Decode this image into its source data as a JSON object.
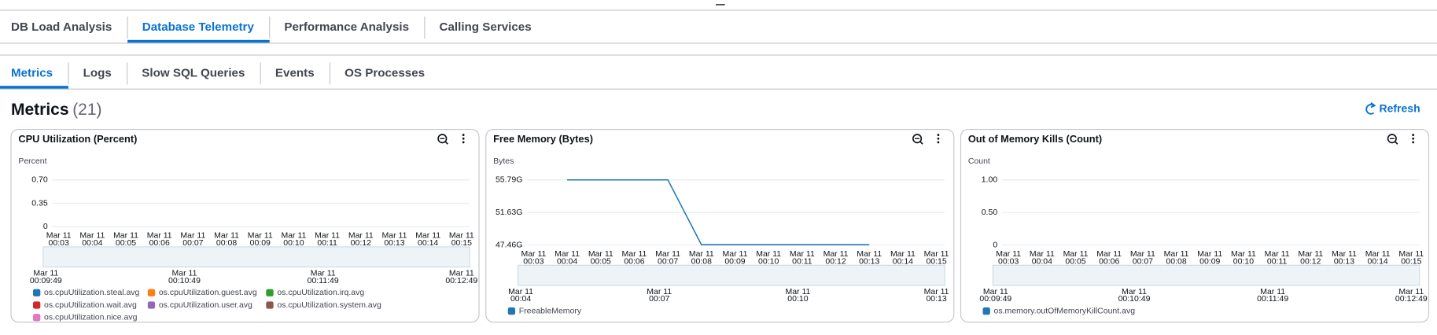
{
  "top_tabs": {
    "items": [
      "DB Load Analysis",
      "Database Telemetry",
      "Performance Analysis",
      "Calling Services"
    ],
    "selected": 1
  },
  "sub_tabs": {
    "items": [
      "Metrics",
      "Logs",
      "Slow SQL Queries",
      "Events",
      "OS Processes"
    ],
    "selected": 0
  },
  "section": {
    "title": "Metrics",
    "count": "(21)",
    "action": "Refresh"
  },
  "chart_data": [
    {
      "type": "line",
      "title": "CPU Utilization (Percent)",
      "y_label": "Percent",
      "categories": [
        [
          "Mar 11",
          "00:03"
        ],
        [
          "Mar 11",
          "00:04"
        ],
        [
          "Mar 11",
          "00:05"
        ],
        [
          "Mar 11",
          "00:06"
        ],
        [
          "Mar 11",
          "00:07"
        ],
        [
          "Mar 11",
          "00:08"
        ],
        [
          "Mar 11",
          "00:09"
        ],
        [
          "Mar 11",
          "00:10"
        ],
        [
          "Mar 11",
          "00:11"
        ],
        [
          "Mar 11",
          "00:12"
        ],
        [
          "Mar 11",
          "00:13"
        ],
        [
          "Mar 11",
          "00:14"
        ],
        [
          "Mar 11",
          "00:15"
        ]
      ],
      "series": [
        {
          "name": "os.cpuUtilization.steal.avg",
          "color": "#1f77b4"
        },
        {
          "name": "os.cpuUtilization.guest.avg",
          "color": "#ff7f0e"
        },
        {
          "name": "os.cpuUtilization.irq.avg",
          "color": "#2ca02c"
        },
        {
          "name": "os.cpuUtilization.wait.avg",
          "color": "#d62728"
        },
        {
          "name": "os.cpuUtilization.user.avg",
          "color": "#9467bd"
        },
        {
          "name": "os.cpuUtilization.system.avg",
          "color": "#8c564b"
        },
        {
          "name": "os.cpuUtilization.nice.avg",
          "color": "#e377c2"
        }
      ],
      "ylim": [
        0,
        0.7
      ],
      "yticks": [
        0,
        {
          "value": 0.35,
          "label": "0.35"
        },
        {
          "value": 0.7,
          "label": "0.70"
        }
      ],
      "grid": true,
      "navigator_ticks": [
        [
          "Mar 11",
          "00:09:49"
        ],
        [
          "Mar 11",
          "00:10:49"
        ],
        [
          "Mar 11",
          "00:11:49"
        ],
        [
          "Mar 11",
          "00:12:49"
        ]
      ]
    },
    {
      "type": "line",
      "title": "Free Memory (Bytes)",
      "y_label": "Bytes",
      "categories": [
        [
          "Mar 11",
          "00:03"
        ],
        [
          "Mar 11",
          "00:04"
        ],
        [
          "Mar 11",
          "00:05"
        ],
        [
          "Mar 11",
          "00:06"
        ],
        [
          "Mar 11",
          "00:07"
        ],
        [
          "Mar 11",
          "00:08"
        ],
        [
          "Mar 11",
          "00:09"
        ],
        [
          "Mar 11",
          "00:10"
        ],
        [
          "Mar 11",
          "00:11"
        ],
        [
          "Mar 11",
          "00:12"
        ],
        [
          "Mar 11",
          "00:13"
        ],
        [
          "Mar 11",
          "00:14"
        ],
        [
          "Mar 11",
          "00:15"
        ]
      ],
      "series": [
        {
          "name": "FreeableMemory",
          "color": "#1f77b4",
          "values": [
            null,
            55.79,
            55.79,
            55.79,
            55.79,
            47.5,
            47.5,
            47.5,
            47.5,
            47.5,
            47.5,
            null,
            null
          ]
        }
      ],
      "ylim": [
        47.46,
        55.79
      ],
      "yticks": [
        {
          "value": 47.46,
          "label": "47.46G"
        },
        {
          "value": 51.63,
          "label": "51.63G"
        },
        {
          "value": 55.79,
          "label": "55.79G"
        }
      ],
      "grid": true,
      "navigator_ticks": [
        [
          "Mar 11",
          "00:04"
        ],
        [
          "Mar 11",
          "00:07"
        ],
        [
          "Mar 11",
          "00:10"
        ],
        [
          "Mar 11",
          "00:13"
        ]
      ]
    },
    {
      "type": "line",
      "title": "Out of Memory Kills (Count)",
      "y_label": "Count",
      "categories": [
        [
          "Mar 11",
          "00:03"
        ],
        [
          "Mar 11",
          "00:04"
        ],
        [
          "Mar 11",
          "00:05"
        ],
        [
          "Mar 11",
          "00:06"
        ],
        [
          "Mar 11",
          "00:07"
        ],
        [
          "Mar 11",
          "00:08"
        ],
        [
          "Mar 11",
          "00:09"
        ],
        [
          "Mar 11",
          "00:10"
        ],
        [
          "Mar 11",
          "00:11"
        ],
        [
          "Mar 11",
          "00:12"
        ],
        [
          "Mar 11",
          "00:13"
        ],
        [
          "Mar 11",
          "00:14"
        ],
        [
          "Mar 11",
          "00:15"
        ]
      ],
      "series": [
        {
          "name": "os.memory.outOfMemoryKillCount.avg",
          "color": "#1f77b4"
        }
      ],
      "ylim": [
        0,
        1
      ],
      "yticks": [
        0,
        {
          "value": 0.5,
          "label": "0.50"
        },
        {
          "value": 1,
          "label": "1.00"
        }
      ],
      "grid": true,
      "navigator_ticks": [
        [
          "Mar 11",
          "00:09:49"
        ],
        [
          "Mar 11",
          "00:10:49"
        ],
        [
          "Mar 11",
          "00:11:49"
        ],
        [
          "Mar 11",
          "00:12:49"
        ]
      ]
    }
  ]
}
